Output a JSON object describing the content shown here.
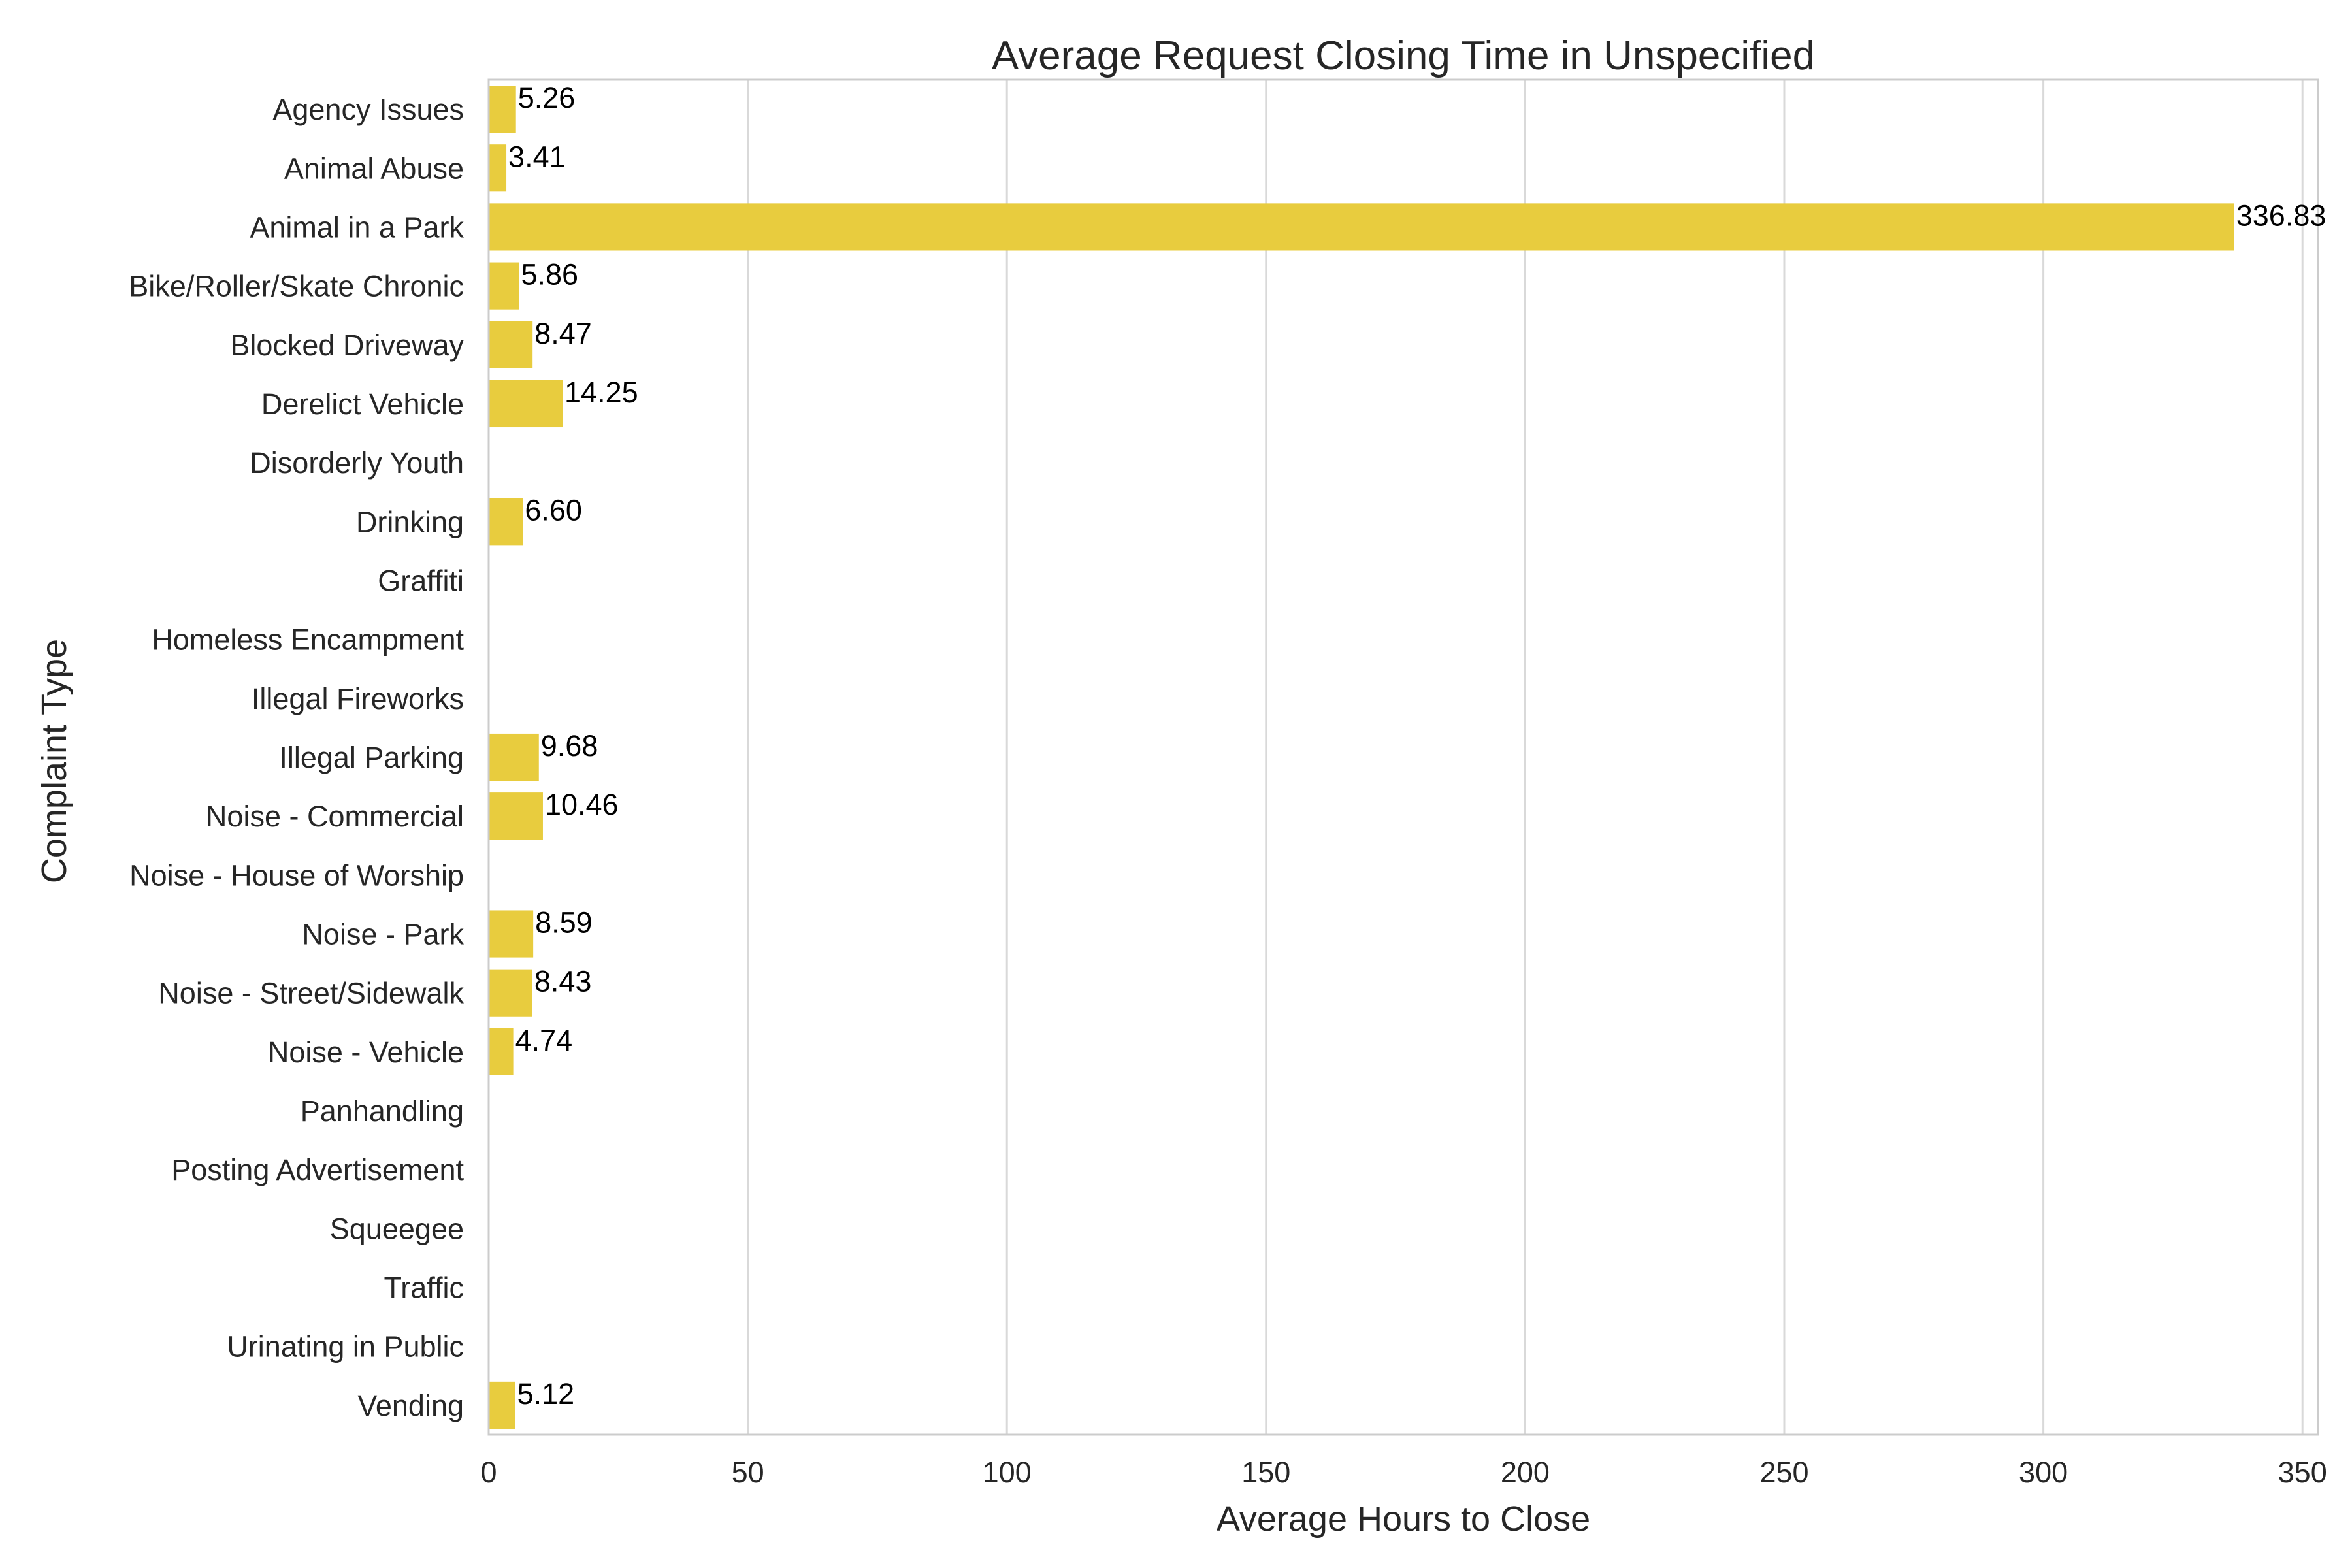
{
  "chart_data": {
    "type": "bar",
    "orientation": "horizontal",
    "title": "Average Request Closing Time in Unspecified",
    "xlabel": "Average Hours to Close",
    "ylabel": "Complaint Type",
    "xlim": [
      0,
      353
    ],
    "xticks": [
      "0",
      "50",
      "100",
      "150",
      "200",
      "250",
      "300",
      "350"
    ],
    "grid": "vertical",
    "categories": [
      "Agency Issues",
      "Animal Abuse",
      "Animal in a Park",
      "Bike/Roller/Skate Chronic",
      "Blocked Driveway",
      "Derelict Vehicle",
      "Disorderly Youth",
      "Drinking",
      "Graffiti",
      "Homeless Encampment",
      "Illegal Fireworks",
      "Illegal Parking",
      "Noise - Commercial",
      "Noise - House of Worship",
      "Noise - Park",
      "Noise - Street/Sidewalk",
      "Noise - Vehicle",
      "Panhandling",
      "Posting Advertisement",
      "Squeegee",
      "Traffic",
      "Urinating in Public",
      "Vending"
    ],
    "values": [
      5.26,
      3.41,
      336.83,
      5.86,
      8.47,
      14.25,
      null,
      6.6,
      null,
      null,
      null,
      9.68,
      10.46,
      null,
      8.59,
      8.43,
      4.74,
      null,
      null,
      null,
      null,
      null,
      5.12
    ],
    "labels": [
      "5.26",
      "3.41",
      "336.83",
      "5.86",
      "8.47",
      "14.25",
      "",
      "6.60",
      "",
      "",
      "",
      "9.68",
      "10.46",
      "",
      "8.59",
      "8.43",
      "4.74",
      "",
      "",
      "",
      "",
      "",
      "5.12"
    ],
    "bar_color": "#e8cc3e",
    "grid_color": "#d9d9d9",
    "spine_color": "#cccccc"
  }
}
